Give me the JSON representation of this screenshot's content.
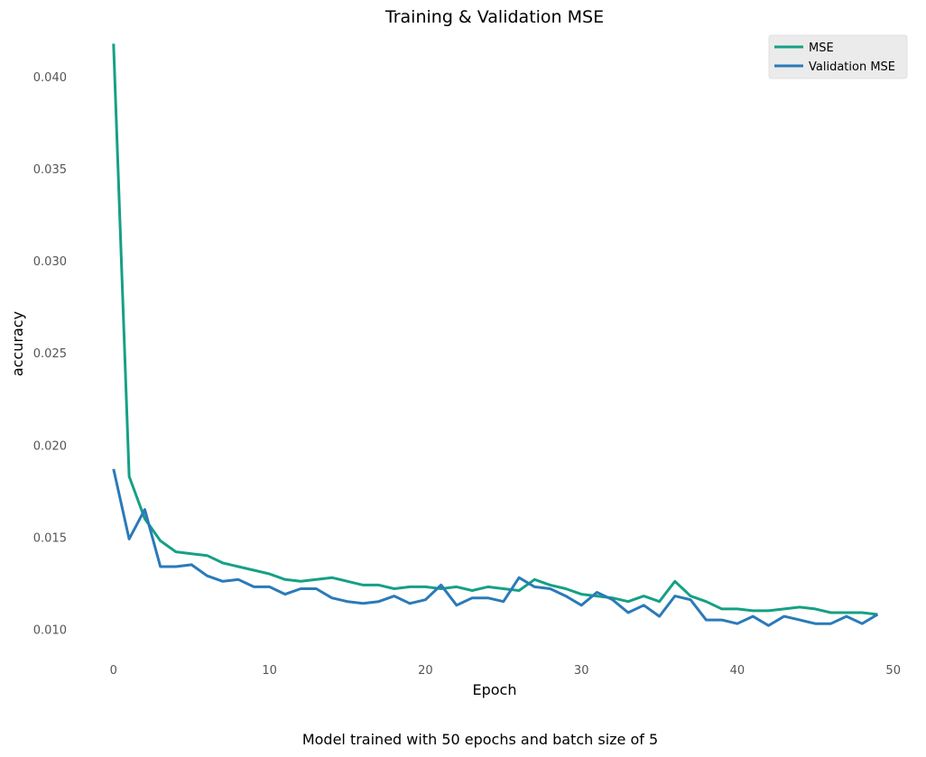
{
  "chart_data": {
    "type": "line",
    "title": "Training & Validation MSE",
    "xlabel": "Epoch",
    "ylabel": "accuracy",
    "caption": "Model trained with 50 epochs and batch size of 5",
    "xlim": [
      -3,
      51
    ],
    "ylim": [
      0.0084,
      0.0428
    ],
    "xticks": [
      0,
      10,
      20,
      30,
      40,
      50
    ],
    "xtick_labels": [
      "0",
      "10",
      "20",
      "30",
      "40",
      "50"
    ],
    "yticks": [
      0.01,
      0.015,
      0.02,
      0.025,
      0.03,
      0.035,
      0.04
    ],
    "ytick_labels": [
      "0.010",
      "0.015",
      "0.020",
      "0.025",
      "0.030",
      "0.035",
      "0.040"
    ],
    "grid": false,
    "legend_position": "top-right",
    "x": [
      0,
      1,
      2,
      3,
      4,
      5,
      6,
      7,
      8,
      9,
      10,
      11,
      12,
      13,
      14,
      15,
      16,
      17,
      18,
      19,
      20,
      21,
      22,
      23,
      24,
      25,
      26,
      27,
      28,
      29,
      30,
      31,
      32,
      33,
      34,
      35,
      36,
      37,
      38,
      39,
      40,
      41,
      42,
      43,
      44,
      45,
      46,
      47,
      48,
      49
    ],
    "series": [
      {
        "name": "MSE",
        "color": "#16a085",
        "values": [
          0.0418,
          0.0183,
          0.016,
          0.0148,
          0.0142,
          0.0141,
          0.014,
          0.0136,
          0.0134,
          0.0132,
          0.013,
          0.0127,
          0.0126,
          0.0127,
          0.0128,
          0.0126,
          0.0124,
          0.0124,
          0.0122,
          0.0123,
          0.0123,
          0.0122,
          0.0123,
          0.0121,
          0.0123,
          0.0122,
          0.0121,
          0.0127,
          0.0124,
          0.0122,
          0.0119,
          0.0118,
          0.0117,
          0.0115,
          0.0118,
          0.0115,
          0.0126,
          0.0118,
          0.0115,
          0.0111,
          0.0111,
          0.011,
          0.011,
          0.0111,
          0.0112,
          0.0111,
          0.0109,
          0.0109,
          0.0109,
          0.0108
        ]
      },
      {
        "name": "Validation MSE",
        "color": "#2a7ab9",
        "values": [
          0.0187,
          0.0149,
          0.0165,
          0.0134,
          0.0134,
          0.0135,
          0.0129,
          0.0126,
          0.0127,
          0.0123,
          0.0123,
          0.0119,
          0.0122,
          0.0122,
          0.0117,
          0.0115,
          0.0114,
          0.0115,
          0.0118,
          0.0114,
          0.0116,
          0.0124,
          0.0113,
          0.0117,
          0.0117,
          0.0115,
          0.0128,
          0.0123,
          0.0122,
          0.0118,
          0.0113,
          0.012,
          0.0116,
          0.0109,
          0.0113,
          0.0107,
          0.0118,
          0.0116,
          0.0105,
          0.0105,
          0.0103,
          0.0107,
          0.0102,
          0.0107,
          0.0105,
          0.0103,
          0.0103,
          0.0107,
          0.0103,
          0.0108
        ]
      }
    ]
  }
}
